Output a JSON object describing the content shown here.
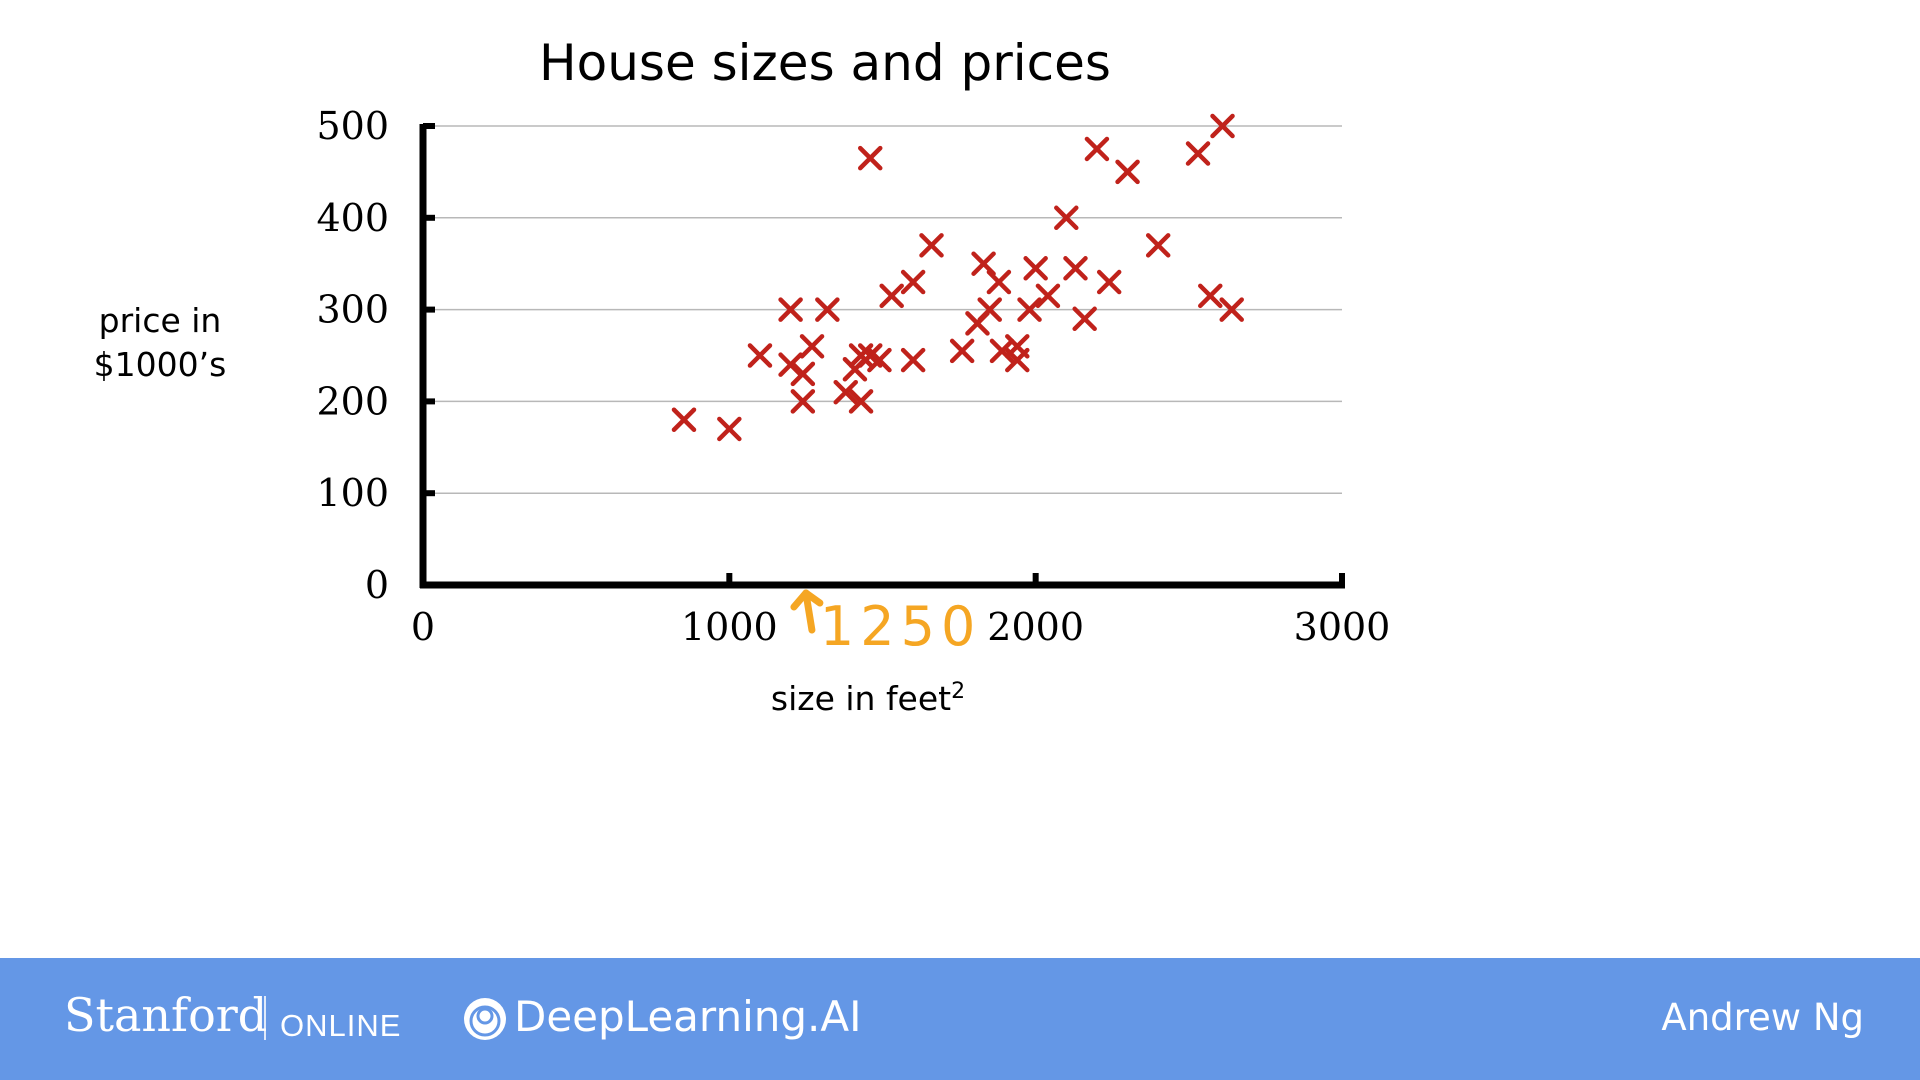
{
  "chart_data": {
    "type": "scatter",
    "title": "House sizes and prices",
    "xlabel": "size in feet",
    "xlabel_superscript": "2",
    "ylabel_lines": [
      "price in",
      "$1000’s"
    ],
    "xlim": [
      0,
      3000
    ],
    "ylim": [
      0,
      500
    ],
    "xticks": [
      "0",
      "1000",
      "2000",
      "3000"
    ],
    "yticks": [
      "0",
      "100",
      "200",
      "300",
      "400",
      "500"
    ],
    "grid": true,
    "marker": "x",
    "color": "#c0221b",
    "points": [
      [
        852,
        180
      ],
      [
        1000,
        170
      ],
      [
        1100,
        250
      ],
      [
        1200,
        300
      ],
      [
        1200,
        240
      ],
      [
        1240,
        230
      ],
      [
        1240,
        200
      ],
      [
        1270,
        260
      ],
      [
        1320,
        300
      ],
      [
        1380,
        210
      ],
      [
        1410,
        235
      ],
      [
        1430,
        250
      ],
      [
        1430,
        200
      ],
      [
        1460,
        465
      ],
      [
        1460,
        250
      ],
      [
        1490,
        245
      ],
      [
        1530,
        315
      ],
      [
        1600,
        330
      ],
      [
        1600,
        245
      ],
      [
        1660,
        370
      ],
      [
        1760,
        255
      ],
      [
        1810,
        285
      ],
      [
        1830,
        350
      ],
      [
        1850,
        300
      ],
      [
        1880,
        330
      ],
      [
        1890,
        255
      ],
      [
        1940,
        245
      ],
      [
        1940,
        260
      ],
      [
        1980,
        300
      ],
      [
        2000,
        345
      ],
      [
        2040,
        315
      ],
      [
        2100,
        400
      ],
      [
        2130,
        345
      ],
      [
        2160,
        290
      ],
      [
        2200,
        475
      ],
      [
        2240,
        330
      ],
      [
        2300,
        450
      ],
      [
        2400,
        370
      ],
      [
        2530,
        470
      ],
      [
        2570,
        315
      ],
      [
        2610,
        500
      ],
      [
        2640,
        300
      ]
    ],
    "annotations": [
      {
        "text": "1250",
        "x": 1250,
        "color": "#f5a623"
      }
    ]
  },
  "footer": {
    "stanford": "Stanford",
    "online": "ONLINE",
    "deeplearning": "DeepLearning.AI",
    "author": "Andrew Ng",
    "background": "#6497e6"
  }
}
